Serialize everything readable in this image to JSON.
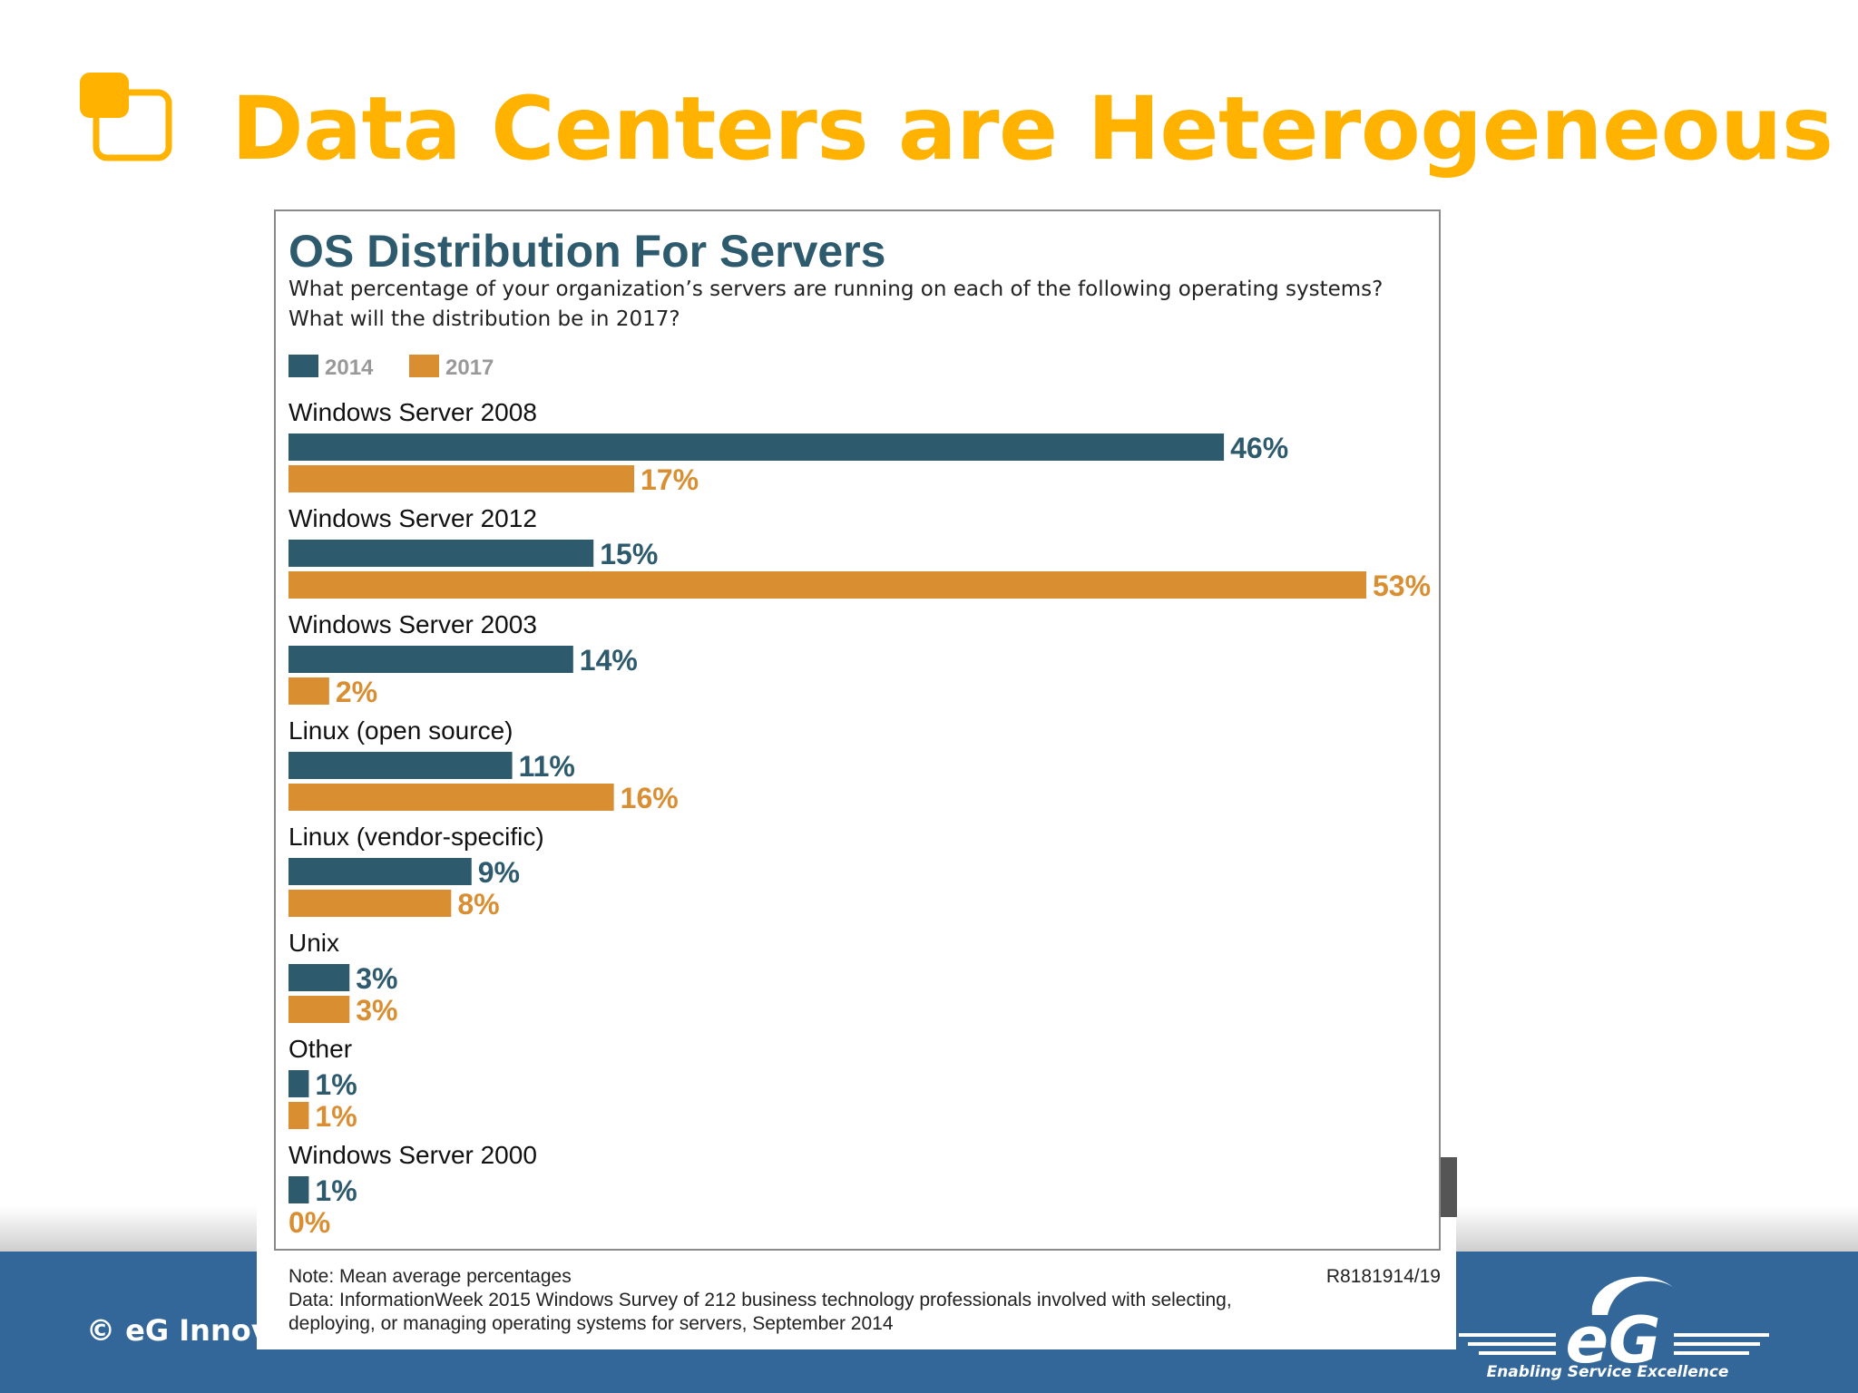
{
  "slide": {
    "title": "Data Centers are Heterogeneous",
    "copyright": "© eG Innov",
    "footer_color": "#336699",
    "title_color": "#ffb300"
  },
  "logo": {
    "mark": "eG",
    "tagline": "Enabling Service Excellence"
  },
  "chart_data": {
    "type": "bar",
    "orientation": "horizontal",
    "title": "OS Distribution For Servers",
    "subtitle_lines": [
      "What percentage of your organization’s servers are running on each of the following operating systems?",
      "What will the distribution be in 2017?"
    ],
    "legend_placement": "top-left",
    "series": [
      {
        "name": "2014",
        "color": "#2e5a6e",
        "values": [
          46,
          15,
          14,
          11,
          9,
          3,
          1,
          1
        ]
      },
      {
        "name": "2017",
        "color": "#d98e32",
        "values": [
          17,
          53,
          2,
          16,
          8,
          3,
          1,
          0
        ]
      }
    ],
    "categories": [
      "Windows Server 2008",
      "Windows Server 2012",
      "Windows Server 2003",
      "Linux (open source)",
      "Linux (vendor-specific)",
      "Unix",
      "Other",
      "Windows Server 2000"
    ],
    "value_suffix": "%",
    "xlim": [
      0,
      53
    ],
    "grid": false,
    "note": "Note: Mean average percentages",
    "source_lines": [
      "Data: InformationWeek 2015 Windows Survey of 212 business technology professionals involved with selecting,",
      "deploying, or managing operating systems for servers, September 2014"
    ],
    "ref_code": "R8181914/19"
  }
}
